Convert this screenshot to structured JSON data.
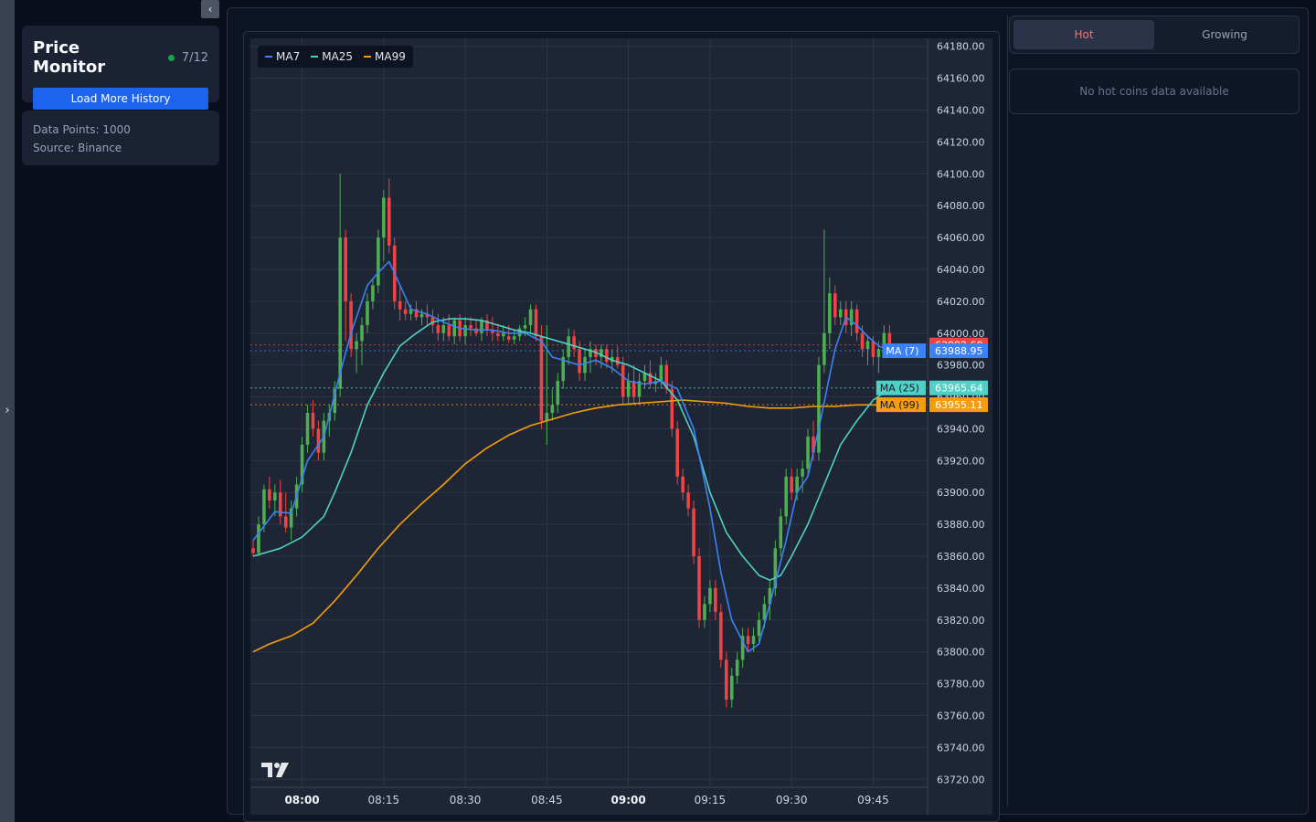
{
  "app": {
    "title": "Price Monitor",
    "page_counter": "7/12",
    "status_color": "#16a34a",
    "load_more_label": "Load More History",
    "collapse_icon": "‹",
    "expand_icon": "›"
  },
  "info": {
    "data_points": "Data Points: 1000",
    "source": "Source: Binance"
  },
  "tabs": [
    {
      "label": "Hot",
      "active": true
    },
    {
      "label": "Growing",
      "active": false
    }
  ],
  "empty_message": "No hot coins data available",
  "logo_text": "17",
  "chart_data": {
    "type": "candlestick",
    "legend": [
      {
        "name": "MA7",
        "color": "#3b82f6"
      },
      {
        "name": "MA25",
        "color": "#4fd1c5"
      },
      {
        "name": "MA99",
        "color": "#f59e0b"
      }
    ],
    "y_ticks": [
      64180,
      64160,
      64140,
      64120,
      64100,
      64080,
      64060,
      64040,
      64020,
      64000,
      63980,
      63960,
      63940,
      63920,
      63900,
      63880,
      63860,
      63840,
      63820,
      63800,
      63780,
      63760,
      63740,
      63720
    ],
    "ylim": [
      63715,
      64185
    ],
    "x_ticks": [
      {
        "label": "08:00",
        "minute": 480,
        "bold": true
      },
      {
        "label": "08:15",
        "minute": 495,
        "bold": false
      },
      {
        "label": "08:30",
        "minute": 510,
        "bold": false
      },
      {
        "label": "08:45",
        "minute": 525,
        "bold": false
      },
      {
        "label": "09:00",
        "minute": 540,
        "bold": true
      },
      {
        "label": "09:15",
        "minute": 555,
        "bold": false
      },
      {
        "label": "09:30",
        "minute": 570,
        "bold": false
      },
      {
        "label": "09:45",
        "minute": 585,
        "bold": false
      }
    ],
    "x_range_minutes": [
      471.0,
      594.5
    ],
    "up_color": "#4caf50",
    "down_color": "#ef4444",
    "candles": [
      [
        471.0,
        63865,
        63870,
        63860,
        63862
      ],
      [
        472.0,
        63862,
        63885,
        63860,
        63880
      ],
      [
        473.0,
        63880,
        63905,
        63875,
        63902
      ],
      [
        474.0,
        63902,
        63910,
        63890,
        63895
      ],
      [
        475.0,
        63895,
        63905,
        63885,
        63900
      ],
      [
        476.0,
        63900,
        63908,
        63880,
        63885
      ],
      [
        477.0,
        63885,
        63900,
        63875,
        63878
      ],
      [
        478.0,
        63878,
        63895,
        63870,
        63890
      ],
      [
        479.0,
        63890,
        63910,
        63885,
        63905
      ],
      [
        480.0,
        63905,
        63935,
        63900,
        63930
      ],
      [
        481.0,
        63930,
        63955,
        63925,
        63950
      ],
      [
        482.0,
        63950,
        63958,
        63935,
        63940
      ],
      [
        483.0,
        63940,
        63945,
        63920,
        63925
      ],
      [
        484.0,
        63925,
        63950,
        63920,
        63945
      ],
      [
        485.0,
        63945,
        63955,
        63935,
        63950
      ],
      [
        486.0,
        63950,
        63970,
        63945,
        63965
      ],
      [
        487.0,
        63965,
        64100,
        63960,
        64060
      ],
      [
        488.0,
        64060,
        64065,
        63995,
        64020
      ],
      [
        489.0,
        64020,
        64025,
        63985,
        63990
      ],
      [
        490.0,
        63990,
        64000,
        63975,
        63995
      ],
      [
        491.0,
        63995,
        64010,
        63980,
        64005
      ],
      [
        492.0,
        64005,
        64025,
        64000,
        64020
      ],
      [
        493.0,
        64020,
        64035,
        64015,
        64030
      ],
      [
        494.0,
        64030,
        64065,
        64025,
        64060
      ],
      [
        495.0,
        64060,
        64090,
        64045,
        64085
      ],
      [
        496.0,
        64085,
        64097,
        64050,
        64055
      ],
      [
        497.0,
        64055,
        64060,
        64015,
        64020
      ],
      [
        498.0,
        64020,
        64030,
        64008,
        64015
      ],
      [
        499.0,
        64015,
        64020,
        64008,
        64012
      ],
      [
        500.0,
        64012,
        64018,
        64008,
        64015
      ],
      [
        501.0,
        64015,
        64020,
        64008,
        64010
      ],
      [
        502.0,
        64010,
        64015,
        64005,
        64012
      ],
      [
        503.0,
        64012,
        64018,
        64005,
        64010
      ],
      [
        504.0,
        64010,
        64015,
        64000,
        64005
      ],
      [
        505.0,
        64005,
        64012,
        63995,
        64000
      ],
      [
        506.0,
        64000,
        64010,
        63995,
        64005
      ],
      [
        507.0,
        64005,
        64012,
        63995,
        63998
      ],
      [
        508.0,
        63998,
        64010,
        63993,
        64008
      ],
      [
        509.0,
        64008,
        64012,
        63995,
        63998
      ],
      [
        510.0,
        63998,
        64010,
        63993,
        64005
      ],
      [
        511.0,
        64005,
        64010,
        63998,
        64003
      ],
      [
        512.0,
        64003,
        64008,
        63998,
        64000
      ],
      [
        513.0,
        64000,
        64010,
        63995,
        64008
      ],
      [
        514.0,
        64008,
        64012,
        63998,
        64002
      ],
      [
        515.0,
        64002,
        64010,
        63995,
        64000
      ],
      [
        516.0,
        64000,
        64006,
        63995,
        63998
      ],
      [
        517.0,
        63998,
        64005,
        63995,
        64000
      ],
      [
        518.0,
        63998,
        64005,
        63994,
        63996
      ],
      [
        519.0,
        63996,
        64002,
        63993,
        63998
      ],
      [
        520.0,
        63998,
        64005,
        63995,
        64003
      ],
      [
        521.0,
        64003,
        64010,
        63998,
        64005
      ],
      [
        522.0,
        64005,
        64018,
        64000,
        64015
      ],
      [
        523.0,
        64015,
        64018,
        63995,
        63998
      ],
      [
        524.0,
        63998,
        64005,
        63940,
        63945
      ],
      [
        525.0,
        63945,
        64005,
        63930,
        63950
      ],
      [
        526.0,
        63950,
        63965,
        63945,
        63955
      ],
      [
        527.0,
        63955,
        63975,
        63950,
        63970
      ],
      [
        528.0,
        63970,
        63990,
        63965,
        63985
      ],
      [
        529.0,
        63985,
        64003,
        63980,
        63998
      ],
      [
        530.0,
        63998,
        64002,
        63985,
        63990
      ],
      [
        531.0,
        63990,
        63995,
        63970,
        63975
      ],
      [
        532.0,
        63975,
        63990,
        63970,
        63985
      ],
      [
        533.0,
        63985,
        63995,
        63975,
        63990
      ],
      [
        534.0,
        63990,
        63993,
        63980,
        63985
      ],
      [
        535.0,
        63985,
        63993,
        63978,
        63990
      ],
      [
        536.0,
        63990,
        63993,
        63978,
        63982
      ],
      [
        537.0,
        63982,
        63990,
        63975,
        63985
      ],
      [
        538.0,
        63985,
        63992,
        63978,
        63980
      ],
      [
        539.0,
        63980,
        63985,
        63955,
        63960
      ],
      [
        540.0,
        63960,
        63975,
        63955,
        63970
      ],
      [
        541.0,
        63970,
        63980,
        63955,
        63960
      ],
      [
        542.0,
        63960,
        63975,
        63955,
        63970
      ],
      [
        543.0,
        63970,
        63980,
        63965,
        63975
      ],
      [
        544.0,
        63975,
        63983,
        63965,
        63968
      ],
      [
        545.0,
        63968,
        63975,
        63963,
        63970
      ],
      [
        546.0,
        63970,
        63985,
        63965,
        63980
      ],
      [
        547.0,
        63980,
        63983,
        63962,
        63965
      ],
      [
        548.0,
        63965,
        63970,
        63935,
        63940
      ],
      [
        549.0,
        63940,
        63945,
        63905,
        63910
      ],
      [
        550.0,
        63910,
        63915,
        63895,
        63900
      ],
      [
        551.0,
        63900,
        63905,
        63885,
        63890
      ],
      [
        552.0,
        63890,
        63895,
        63855,
        63860
      ],
      [
        553.0,
        63860,
        63865,
        63815,
        63820
      ],
      [
        554.0,
        63820,
        63835,
        63815,
        63830
      ],
      [
        555.0,
        63830,
        63845,
        63825,
        63840
      ],
      [
        556.0,
        63840,
        63845,
        63820,
        63825
      ],
      [
        557.0,
        63825,
        63830,
        63790,
        63795
      ],
      [
        558.0,
        63795,
        63800,
        63765,
        63770
      ],
      [
        559.0,
        63770,
        63790,
        63765,
        63785
      ],
      [
        560.0,
        63785,
        63800,
        63780,
        63795
      ],
      [
        561.0,
        63795,
        63815,
        63790,
        63810
      ],
      [
        562.0,
        63810,
        63815,
        63800,
        63805
      ],
      [
        563.0,
        63805,
        63815,
        63800,
        63810
      ],
      [
        564.0,
        63810,
        63825,
        63805,
        63820
      ],
      [
        565.0,
        63820,
        63835,
        63815,
        63830
      ],
      [
        566.0,
        63830,
        63845,
        63820,
        63840
      ],
      [
        567.0,
        63840,
        63870,
        63835,
        63865
      ],
      [
        568.0,
        63865,
        63890,
        63860,
        63885
      ],
      [
        569.0,
        63885,
        63915,
        63880,
        63910
      ],
      [
        570.0,
        63910,
        63915,
        63895,
        63900
      ],
      [
        571.0,
        63900,
        63915,
        63895,
        63910
      ],
      [
        572.0,
        63910,
        63920,
        63900,
        63915
      ],
      [
        573.0,
        63915,
        63940,
        63910,
        63935
      ],
      [
        574.0,
        63935,
        63945,
        63920,
        63925
      ],
      [
        575.0,
        63925,
        63985,
        63920,
        63980
      ],
      [
        576.0,
        63980,
        64065,
        63975,
        64000
      ],
      [
        577.0,
        64000,
        64035,
        63990,
        64025
      ],
      [
        578.0,
        64025,
        64030,
        64005,
        64010
      ],
      [
        579.0,
        64010,
        64020,
        64005,
        64015
      ],
      [
        580.0,
        64015,
        64020,
        64000,
        64005
      ],
      [
        581.0,
        64005,
        64020,
        63998,
        64015
      ],
      [
        582.0,
        64015,
        64018,
        63995,
        64000
      ],
      [
        583.0,
        64000,
        64005,
        63985,
        63990
      ],
      [
        584.0,
        63990,
        63998,
        63980,
        63995
      ],
      [
        585.0,
        63995,
        63998,
        63980,
        63985
      ],
      [
        586.0,
        63985,
        63995,
        63975,
        63990
      ],
      [
        587.0,
        63990,
        64005,
        63985,
        64000
      ],
      [
        588.0,
        64000,
        64005,
        63990,
        63992
      ]
    ],
    "ma7": [
      [
        471,
        63870
      ],
      [
        475,
        63888
      ],
      [
        478,
        63887
      ],
      [
        481,
        63920
      ],
      [
        484,
        63935
      ],
      [
        487,
        63975
      ],
      [
        489,
        64000
      ],
      [
        492,
        64030
      ],
      [
        494,
        64038
      ],
      [
        496,
        64045
      ],
      [
        498,
        64030
      ],
      [
        500,
        64015
      ],
      [
        503,
        64012
      ],
      [
        506,
        64007
      ],
      [
        509,
        64003
      ],
      [
        512,
        64002
      ],
      [
        515,
        64002
      ],
      [
        518,
        64000
      ],
      [
        521,
        64000
      ],
      [
        524,
        63995
      ],
      [
        526,
        63985
      ],
      [
        528,
        63983
      ],
      [
        531,
        63980
      ],
      [
        534,
        63983
      ],
      [
        537,
        63978
      ],
      [
        540,
        63970
      ],
      [
        543,
        63968
      ],
      [
        546,
        63970
      ],
      [
        549,
        63965
      ],
      [
        552,
        63940
      ],
      [
        555,
        63890
      ],
      [
        557,
        63850
      ],
      [
        559,
        63820
      ],
      [
        562,
        63800
      ],
      [
        564,
        63805
      ],
      [
        566,
        63830
      ],
      [
        569,
        63870
      ],
      [
        571,
        63900
      ],
      [
        573,
        63910
      ],
      [
        575,
        63940
      ],
      [
        578,
        63990
      ],
      [
        580,
        64010
      ],
      [
        582,
        64005
      ],
      [
        584,
        63998
      ],
      [
        586,
        63992
      ],
      [
        588,
        63989
      ]
    ],
    "ma25": [
      [
        471,
        63860
      ],
      [
        476,
        63865
      ],
      [
        480,
        63872
      ],
      [
        484,
        63885
      ],
      [
        486,
        63900
      ],
      [
        489,
        63925
      ],
      [
        492,
        63955
      ],
      [
        495,
        63975
      ],
      [
        498,
        63992
      ],
      [
        501,
        64000
      ],
      [
        504,
        64007
      ],
      [
        507,
        64009
      ],
      [
        510,
        64009
      ],
      [
        513,
        64008
      ],
      [
        516,
        64005
      ],
      [
        519,
        64002
      ],
      [
        522,
        64000
      ],
      [
        525,
        63997
      ],
      [
        528,
        63994
      ],
      [
        531,
        63991
      ],
      [
        534,
        63988
      ],
      [
        537,
        63983
      ],
      [
        540,
        63980
      ],
      [
        543,
        63975
      ],
      [
        546,
        63970
      ],
      [
        549,
        63958
      ],
      [
        552,
        63935
      ],
      [
        555,
        63900
      ],
      [
        558,
        63875
      ],
      [
        561,
        63860
      ],
      [
        564,
        63848
      ],
      [
        566,
        63845
      ],
      [
        568,
        63848
      ],
      [
        570,
        63860
      ],
      [
        573,
        63880
      ],
      [
        576,
        63905
      ],
      [
        579,
        63930
      ],
      [
        582,
        63945
      ],
      [
        585,
        63958
      ],
      [
        588,
        63965
      ]
    ],
    "ma99": [
      [
        471,
        63800
      ],
      [
        474,
        63805
      ],
      [
        478,
        63810
      ],
      [
        482,
        63818
      ],
      [
        486,
        63832
      ],
      [
        490,
        63848
      ],
      [
        494,
        63865
      ],
      [
        498,
        63880
      ],
      [
        502,
        63893
      ],
      [
        506,
        63905
      ],
      [
        510,
        63918
      ],
      [
        514,
        63928
      ],
      [
        518,
        63936
      ],
      [
        522,
        63942
      ],
      [
        526,
        63946
      ],
      [
        530,
        63950
      ],
      [
        534,
        63953
      ],
      [
        538,
        63955
      ],
      [
        542,
        63956
      ],
      [
        546,
        63957
      ],
      [
        550,
        63958
      ],
      [
        554,
        63957
      ],
      [
        558,
        63956
      ],
      [
        562,
        63954
      ],
      [
        566,
        63953
      ],
      [
        570,
        63953
      ],
      [
        574,
        63954
      ],
      [
        578,
        63954
      ],
      [
        582,
        63955
      ],
      [
        585,
        63955
      ],
      [
        588,
        63955
      ]
    ],
    "price_labels": [
      {
        "text": "63992.60",
        "value": 63992.6,
        "color": "#ef4444",
        "line_color": "#ef4444",
        "tag": ""
      },
      {
        "text": "63988.95",
        "value": 63988.95,
        "color": "#3b82f6",
        "line_color": "#3b82f6",
        "tag": "MA (7)"
      },
      {
        "text": "63965.64",
        "value": 63965.64,
        "color": "#4fd1c5",
        "line_color": "#4fd1c5",
        "tag": "MA (25)"
      },
      {
        "text": "63955.11",
        "value": 63955.11,
        "color": "#f59e0b",
        "line_color": "#f59e0b",
        "tag": "MA (99)"
      }
    ]
  }
}
